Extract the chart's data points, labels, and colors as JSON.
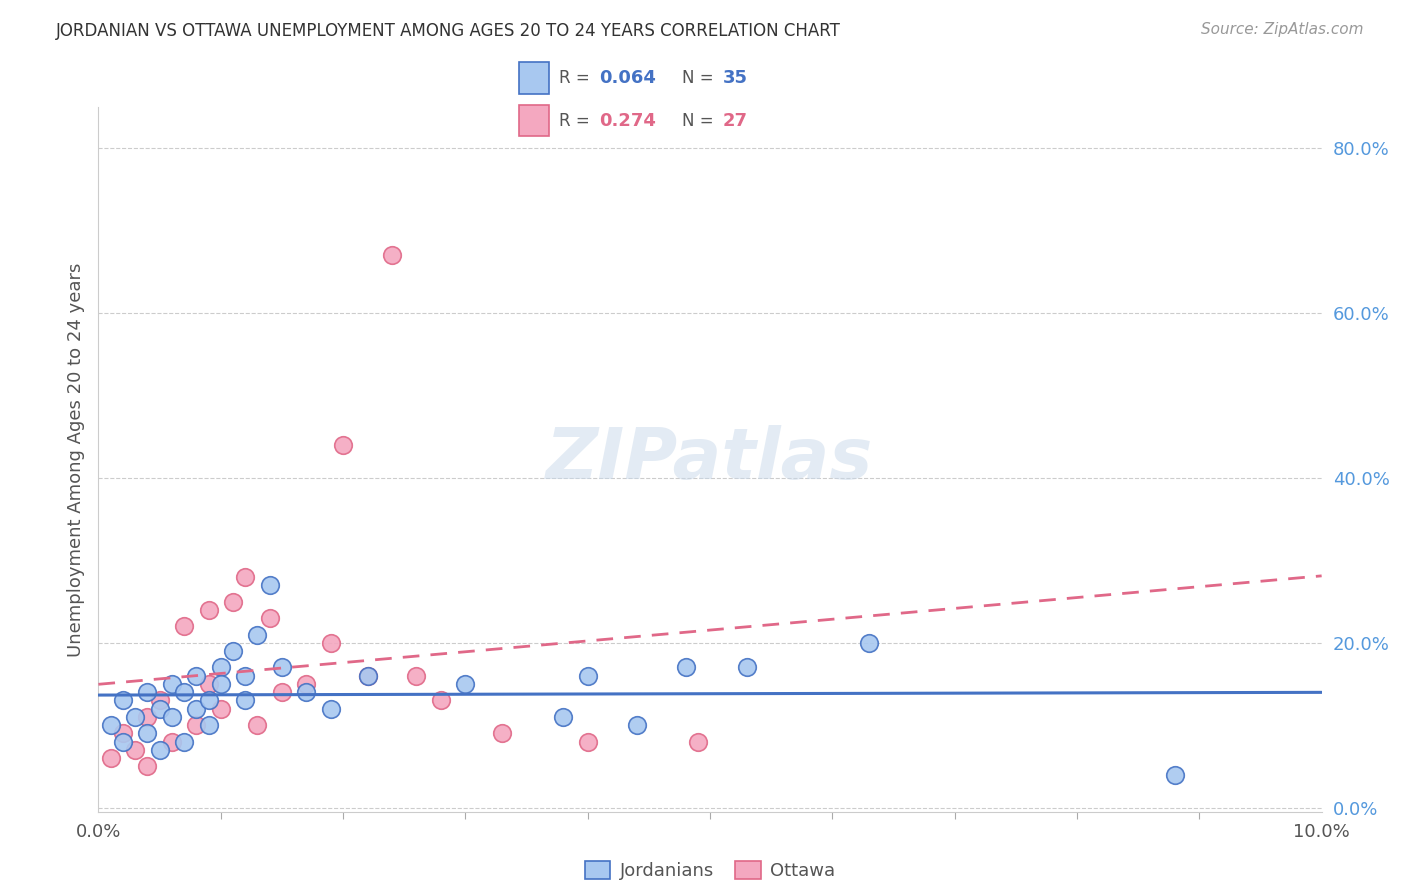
{
  "title": "JORDANIAN VS OTTAWA UNEMPLOYMENT AMONG AGES 20 TO 24 YEARS CORRELATION CHART",
  "source": "Source: ZipAtlas.com",
  "ylabel": "Unemployment Among Ages 20 to 24 years",
  "ytick_vals": [
    0.0,
    0.2,
    0.4,
    0.6,
    0.8
  ],
  "ytick_labels": [
    "0.0%",
    "20.0%",
    "40.0%",
    "60.0%",
    "80.0%"
  ],
  "color_j_fill": "#a8c8f0",
  "color_j_edge": "#4472c4",
  "color_o_fill": "#f4a8c0",
  "color_o_edge": "#e06888",
  "color_line_blue": "#4472c4",
  "color_line_pink": "#e06888",
  "color_right_axis": "#5599dd",
  "xlim": [
    0.0,
    0.1
  ],
  "ylim": [
    -0.005,
    0.85
  ],
  "background": "#ffffff",
  "grid_color": "#cccccc",
  "title_color": "#333333",
  "source_color": "#999999",
  "label_color": "#555555",
  "jordanians_x": [
    0.001,
    0.002,
    0.002,
    0.003,
    0.004,
    0.004,
    0.005,
    0.005,
    0.006,
    0.006,
    0.007,
    0.007,
    0.008,
    0.008,
    0.009,
    0.009,
    0.01,
    0.01,
    0.011,
    0.012,
    0.012,
    0.013,
    0.014,
    0.015,
    0.017,
    0.019,
    0.022,
    0.03,
    0.038,
    0.04,
    0.044,
    0.048,
    0.053,
    0.063,
    0.088
  ],
  "jordanians_y": [
    0.1,
    0.08,
    0.13,
    0.11,
    0.09,
    0.14,
    0.12,
    0.07,
    0.11,
    0.15,
    0.14,
    0.08,
    0.16,
    0.12,
    0.13,
    0.1,
    0.17,
    0.15,
    0.19,
    0.16,
    0.13,
    0.21,
    0.27,
    0.17,
    0.14,
    0.12,
    0.16,
    0.15,
    0.11,
    0.16,
    0.1,
    0.17,
    0.17,
    0.2,
    0.04
  ],
  "ottawa_x": [
    0.001,
    0.002,
    0.003,
    0.004,
    0.004,
    0.005,
    0.006,
    0.007,
    0.008,
    0.009,
    0.009,
    0.01,
    0.011,
    0.012,
    0.013,
    0.014,
    0.015,
    0.017,
    0.019,
    0.02,
    0.022,
    0.024,
    0.026,
    0.028,
    0.033,
    0.04,
    0.049
  ],
  "ottawa_y": [
    0.06,
    0.09,
    0.07,
    0.11,
    0.05,
    0.13,
    0.08,
    0.22,
    0.1,
    0.24,
    0.15,
    0.12,
    0.25,
    0.28,
    0.1,
    0.23,
    0.14,
    0.15,
    0.2,
    0.44,
    0.16,
    0.67,
    0.16,
    0.13,
    0.09,
    0.08,
    0.08
  ]
}
